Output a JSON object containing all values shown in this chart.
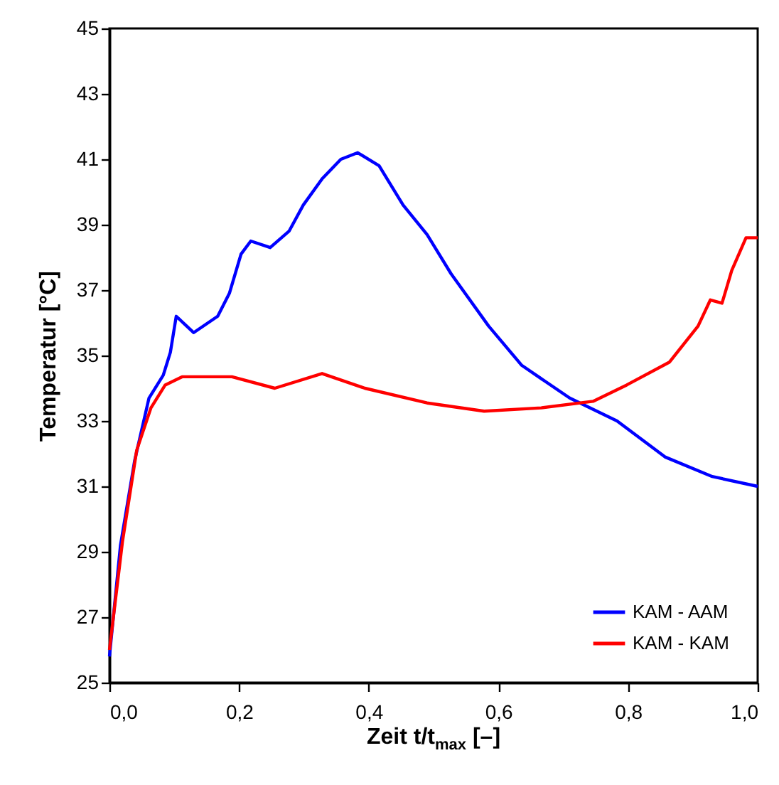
{
  "chart_data": {
    "type": "line",
    "xlabel": "Zeit t/t$_{max}$ [–]",
    "ylabel": "Temperatur [°C]",
    "xlim": [
      0,
      1
    ],
    "xticks": [
      {
        "value": 0,
        "label": "0,0"
      },
      {
        "value": 0.2,
        "label": "0,2"
      },
      {
        "value": 0.4,
        "label": "0,4"
      },
      {
        "value": 0.6,
        "label": "0,6"
      },
      {
        "value": 0.8,
        "label": "0,8"
      },
      {
        "value": 1,
        "label": "1,0"
      }
    ],
    "ylim": [
      25,
      45
    ],
    "yticks": [
      25,
      27,
      29,
      31,
      33,
      35,
      37,
      39,
      41,
      43,
      45
    ],
    "grid": false,
    "legend": "bottom right",
    "marker": "none",
    "line_style": "solid",
    "series": [
      {
        "name": "KAM - AAM",
        "color": "#0000ff",
        "x": [
          0,
          0.017,
          0.039,
          0.061,
          0.083,
          0.094,
          0.103,
          0.13,
          0.167,
          0.185,
          0.203,
          0.218,
          0.248,
          0.277,
          0.299,
          0.328,
          0.357,
          0.383,
          0.416,
          0.453,
          0.49,
          0.527,
          0.585,
          0.636,
          0.71,
          0.783,
          0.857,
          0.93,
          1.0
        ],
        "values": [
          25.8,
          29.2,
          31.8,
          33.7,
          34.4,
          35.1,
          36.2,
          35.7,
          36.2,
          36.9,
          38.1,
          38.5,
          38.3,
          38.8,
          39.6,
          40.4,
          41.0,
          41.2,
          40.8,
          39.6,
          38.7,
          37.5,
          35.9,
          34.7,
          33.7,
          33.0,
          31.9,
          31.3,
          31.0
        ]
      },
      {
        "name": "KAM - KAM",
        "color": "#ff0000",
        "x": [
          0,
          0.02,
          0.042,
          0.064,
          0.086,
          0.112,
          0.189,
          0.255,
          0.328,
          0.394,
          0.49,
          0.578,
          0.666,
          0.746,
          0.798,
          0.864,
          0.908,
          0.927,
          0.945,
          0.96,
          0.982,
          1.0
        ],
        "values": [
          26.0,
          29.3,
          32.1,
          33.4,
          34.1,
          34.35,
          34.35,
          34.0,
          34.45,
          34.0,
          33.55,
          33.3,
          33.4,
          33.6,
          34.1,
          34.8,
          35.9,
          36.7,
          36.6,
          37.6,
          38.6,
          38.6
        ]
      }
    ]
  }
}
